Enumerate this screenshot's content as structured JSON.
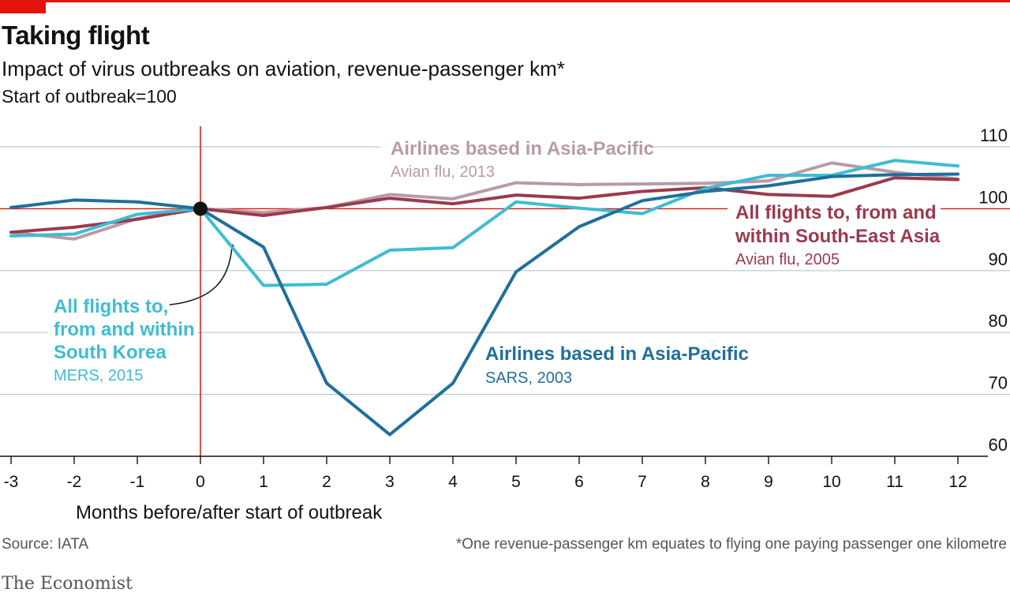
{
  "header": {
    "title": "Taking flight",
    "subtitle": "Impact of virus outbreaks on aviation, revenue-passenger km*",
    "note": "Start of outbreak=100"
  },
  "chart_data": {
    "type": "line",
    "title": "Taking flight",
    "subtitle": "Impact of virus outbreaks on aviation, revenue-passenger km*",
    "xlabel": "Months before/after start of outbreak",
    "ylabel": "Start of outbreak=100",
    "x": [
      -3,
      -2,
      -1,
      0,
      1,
      2,
      3,
      4,
      5,
      6,
      7,
      8,
      9,
      10,
      11,
      12
    ],
    "xlim": [
      -3,
      12
    ],
    "ylim": [
      60,
      110
    ],
    "yticks": [
      60,
      70,
      80,
      90,
      100,
      110
    ],
    "series": [
      {
        "key": "sars",
        "name": "Airlines based in Asia-Pacific",
        "sub": "SARS, 2003",
        "color": "#1f6f9c",
        "values": [
          100.2,
          101.4,
          101.1,
          100,
          93.8,
          71.8,
          63.5,
          71.8,
          89.8,
          97.1,
          101.3,
          102.8,
          103.7,
          105.2,
          105.5,
          105.6
        ]
      },
      {
        "key": "mers",
        "name": "All flights to, from and within South Korea",
        "lines": [
          "All flights to,",
          "from and within",
          "South Korea"
        ],
        "sub": "MERS, 2015",
        "color": "#3ebcd2",
        "values": [
          95.6,
          95.9,
          99.1,
          100,
          87.6,
          87.8,
          93.3,
          93.7,
          101.1,
          100.1,
          99.2,
          103.3,
          105.4,
          105.4,
          107.8,
          106.9
        ]
      },
      {
        "key": "avian2013",
        "name": "Airlines based in Asia-Pacific",
        "sub": "Avian flu, 2013",
        "color": "#b89aa8",
        "values": [
          96.2,
          95.1,
          98.4,
          100,
          99.4,
          100.2,
          102.3,
          101.6,
          104.2,
          103.9,
          104.0,
          104.1,
          104.5,
          107.4,
          105.9,
          104.8
        ]
      },
      {
        "key": "avian2005",
        "name": "All flights to, from and within South-East Asia",
        "lines": [
          "All flights to, from and",
          "within South-East Asia"
        ],
        "sub": "Avian flu, 2005",
        "color": "#9b3a4d",
        "values": [
          96.2,
          97.0,
          98.3,
          100,
          98.9,
          100.2,
          101.7,
          100.8,
          102.2,
          101.7,
          102.8,
          103.4,
          102.3,
          102.0,
          105.0,
          104.7
        ]
      }
    ]
  },
  "footer": {
    "source": "Source: IATA",
    "footnote": "*One revenue-passenger km equates to flying one paying passenger one kilometre",
    "brand": "The Economist"
  },
  "colors": {
    "accent_red": "#e3120b",
    "gridline": "#b7c6cf",
    "zero_marker": "#121212"
  }
}
